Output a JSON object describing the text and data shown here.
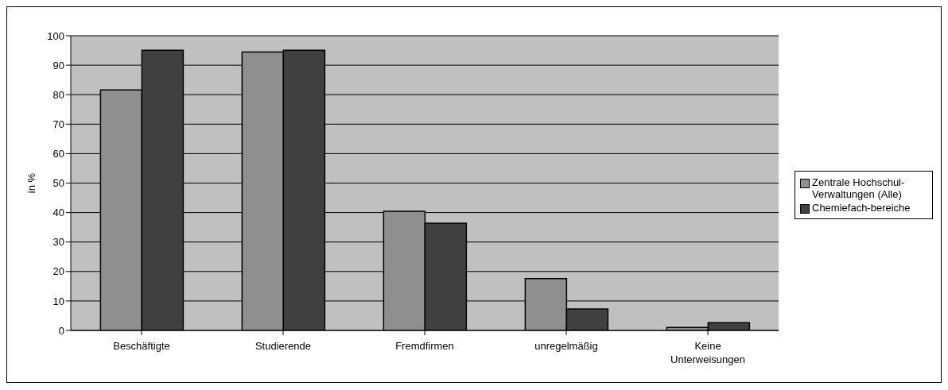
{
  "chart_data": {
    "type": "bar",
    "ylabel": "in %",
    "categories": [
      "Beschäftigte",
      "Studierende",
      "Fremdfirmen",
      "unregelmäßig",
      "Keine Unterweisungen"
    ],
    "series": [
      {
        "name": "Zentrale Hochschul-Verwaltungen (Alle)",
        "color": "#8f8f8f",
        "values": [
          81.6,
          94.5,
          40.4,
          17.6,
          1.0
        ]
      },
      {
        "name": "Chemiefach-bereiche",
        "color": "#404040",
        "values": [
          95.1,
          95.1,
          36.4,
          7.3,
          2.6
        ]
      }
    ],
    "ylim": [
      0,
      100
    ],
    "yticks": [
      0,
      10,
      20,
      30,
      40,
      50,
      60,
      70,
      80,
      90,
      100
    ],
    "grid": "y",
    "legend": "right"
  }
}
